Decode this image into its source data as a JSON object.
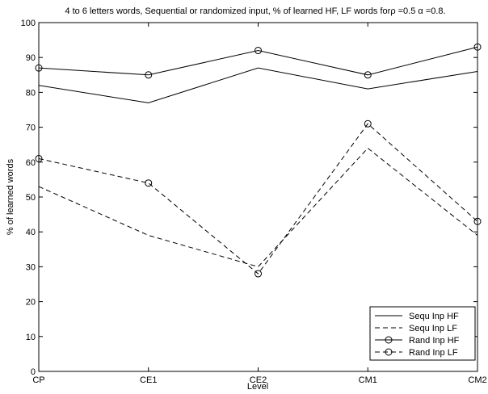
{
  "chart_data": {
    "type": "line",
    "title": "4 to 6 letters words, Sequential or randomized input, % of learned HF, LF words forρ =0.5 α =0.8.",
    "xlabel": "Level",
    "ylabel": "% of learned words",
    "categories": [
      "CP",
      "CE1",
      "CE2",
      "CM1",
      "CM2"
    ],
    "ylim": [
      0,
      100
    ],
    "yticks": [
      0,
      10,
      20,
      30,
      40,
      50,
      60,
      70,
      80,
      90,
      100
    ],
    "grid": false,
    "legend_position": "bottom-right",
    "series": [
      {
        "name": "Sequ Inp HF",
        "values": [
          82,
          77,
          87,
          81,
          86
        ],
        "line": "solid",
        "marker": "none",
        "color": "#000000"
      },
      {
        "name": "Sequ Inp LF",
        "values": [
          53,
          39,
          30,
          64,
          39
        ],
        "line": "dashed",
        "marker": "none",
        "color": "#000000"
      },
      {
        "name": "Rand Inp HF",
        "values": [
          87,
          85,
          92,
          85,
          93
        ],
        "line": "solid",
        "marker": "circle",
        "color": "#000000"
      },
      {
        "name": "Rand Inp LF",
        "values": [
          61,
          54,
          28,
          71,
          43
        ],
        "line": "dashed",
        "marker": "circle",
        "color": "#000000"
      }
    ]
  }
}
